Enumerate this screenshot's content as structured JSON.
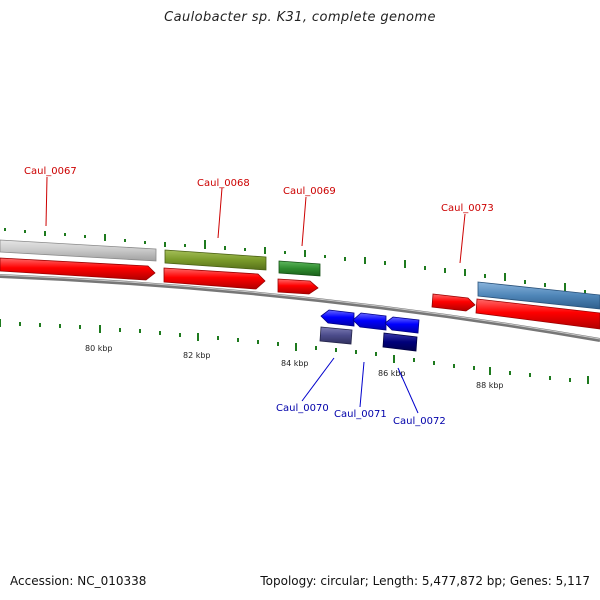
{
  "title": "Caulobacter sp. K31, complete genome",
  "footer": {
    "accession": "Accession: NC_010338",
    "stats": "Topology: circular; Length: 5,477,872 bp; Genes: 5,117"
  },
  "ticks": {
    "labels": [
      "80 kbp",
      "82 kbp",
      "84 kbp",
      "86 kbp",
      "88 kbp"
    ]
  },
  "genes": [
    {
      "id": "Caul_0067",
      "strand": "+",
      "color": "#cc0000"
    },
    {
      "id": "Caul_0068",
      "strand": "+",
      "color": "#cc0000"
    },
    {
      "id": "Caul_0069",
      "strand": "+",
      "color": "#cc0000"
    },
    {
      "id": "Caul_0070",
      "strand": "-",
      "color": "#0000aa"
    },
    {
      "id": "Caul_0071",
      "strand": "-",
      "color": "#0000aa"
    },
    {
      "id": "Caul_0072",
      "strand": "-",
      "color": "#0000aa"
    },
    {
      "id": "Caul_0073",
      "strand": "+",
      "color": "#cc0000"
    }
  ],
  "feature_colors": {
    "cds_forward": "#ff0000",
    "cds_reverse": "#0000ff",
    "backbone": "#888888",
    "tick": "#1e7a1e",
    "feature_gray": "#c8c8c8",
    "feature_olive": "#7a9a2a",
    "feature_green": "#2e8b2e",
    "feature_steelblue": "#4f86b8",
    "feature_slate": "#4b4b8a",
    "feature_navy": "#00007a"
  }
}
